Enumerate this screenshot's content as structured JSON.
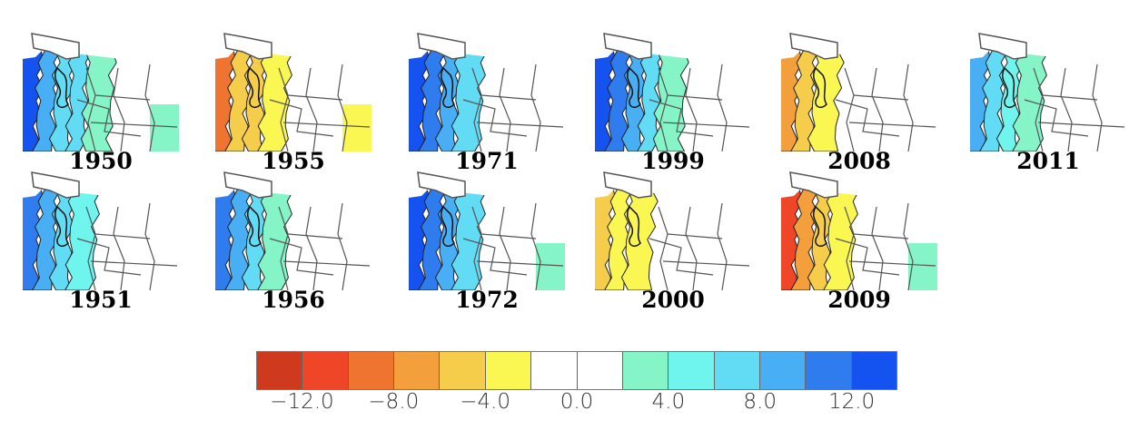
{
  "colorbar": {
    "colors": [
      "#cf3a1f",
      "#ee4626",
      "#ef7430",
      "#f3a03c",
      "#f5cd4b",
      "#fbf752",
      "#ffffff",
      "#ffffff",
      "#85f5c8",
      "#6ff4ee",
      "#62dcf4",
      "#49aff4",
      "#2f7cee",
      "#1553f0"
    ],
    "ticks": [
      "−12.0",
      "−8.0",
      "−4.0",
      "0.0",
      "4.0",
      "8.0",
      "12.0"
    ]
  },
  "maps": [
    {
      "year": "1950",
      "bands": [
        "#1553f0",
        "#49aff4",
        "#62dcf4",
        "#62dcf4",
        "#85f5c8"
      ],
      "east": "#85f5c8"
    },
    {
      "year": "1955",
      "bands": [
        "#ef7430",
        "#f5cd4b",
        "#f5cd4b",
        "#fbf752"
      ],
      "east": "#fbf752"
    },
    {
      "year": "1971",
      "bands": [
        "#1553f0",
        "#2f7cee",
        "#49aff4",
        "#62dcf4"
      ],
      "east": "#ffffff"
    },
    {
      "year": "1999",
      "bands": [
        "#1553f0",
        "#2f7cee",
        "#49aff4",
        "#62dcf4",
        "#85f5c8"
      ],
      "east": "#ffffff"
    },
    {
      "year": "2008",
      "bands": [
        "#f3a03c",
        "#f5cd4b",
        "#fbf752"
      ],
      "east": "#ffffff"
    },
    {
      "year": "2011",
      "bands": [
        "#49aff4",
        "#62dcf4",
        "#6ff4ee",
        "#85f5c8"
      ],
      "east": "#ffffff"
    },
    {
      "year": "1951",
      "bands": [
        "#2f7cee",
        "#49aff4",
        "#62dcf4",
        "#6ff4ee"
      ],
      "east": "#ffffff"
    },
    {
      "year": "1956",
      "bands": [
        "#2f7cee",
        "#49aff4",
        "#62dcf4",
        "#85f5c8"
      ],
      "east": "#ffffff"
    },
    {
      "year": "1972",
      "bands": [
        "#1553f0",
        "#2f7cee",
        "#49aff4",
        "#62dcf4"
      ],
      "east": "#85f5c8"
    },
    {
      "year": "2000",
      "bands": [
        "#f5cd4b",
        "#fbf752",
        "#fbf752"
      ],
      "east": "#ffffff"
    },
    {
      "year": "2009",
      "bands": [
        "#ee4626",
        "#f3a03c",
        "#f5cd4b",
        "#fbf752"
      ],
      "east": "#85f5c8"
    }
  ]
}
